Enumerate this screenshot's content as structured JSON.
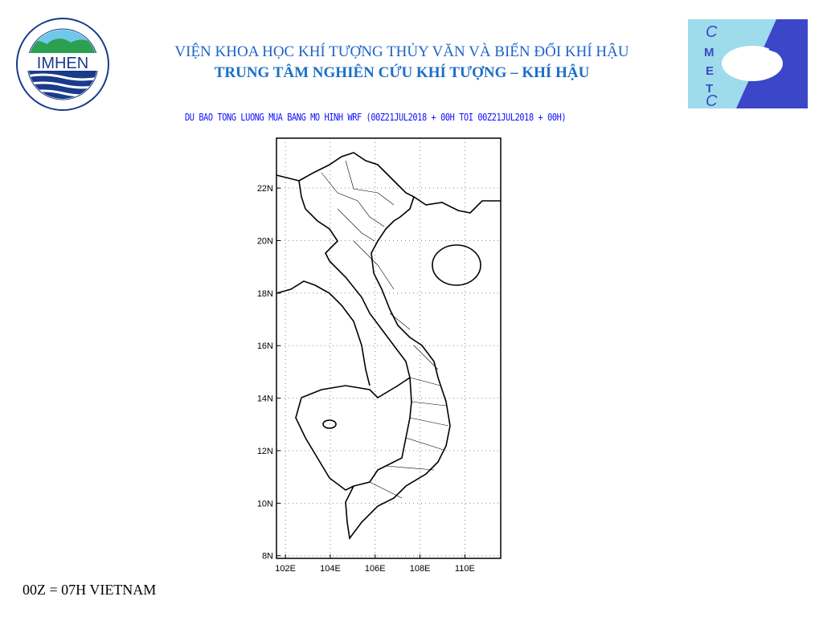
{
  "header": {
    "title_line1": "VIỆN KHOA HỌC KHÍ TƯỢNG THỦY VĂN VÀ BIẾN ĐỔI KHÍ HẬU",
    "title_line2": "TRUNG TÂM NGHIÊN CỨU KHÍ TƯỢNG – KHÍ HẬU",
    "logo_left_text": "IMHEN",
    "logo_left_ring": "VIỆN KHOA HỌC KHÍ TƯỢNG THỦY VĂN VÀ BIẾN ĐỔI KHÍ HẬU",
    "logo_right_text": "CMETC"
  },
  "map": {
    "subtitle": "DU BAO TONG LUONG MUA BANG MO HINH WRF (00Z21JUL2018 + 00H TOI 00Z21JUL2018 + 00H)",
    "region": "Vietnam",
    "lon_range": [
      101.6,
      111.6
    ],
    "lat_range": [
      7.9,
      23.9
    ],
    "grid": "dotted",
    "lat_ticks": [
      "8N",
      "10N",
      "12N",
      "14N",
      "16N",
      "18N",
      "20N",
      "22N"
    ],
    "lon_ticks": [
      "102E",
      "104E",
      "106E",
      "108E",
      "110E"
    ],
    "colors": {
      "title": "#1e64c8",
      "subtitle": "#1010ff",
      "logo_right_light": "#9edcec",
      "logo_right_dark": "#3c46c8"
    }
  },
  "footer": {
    "note": "00Z = 07H VIETNAM"
  }
}
